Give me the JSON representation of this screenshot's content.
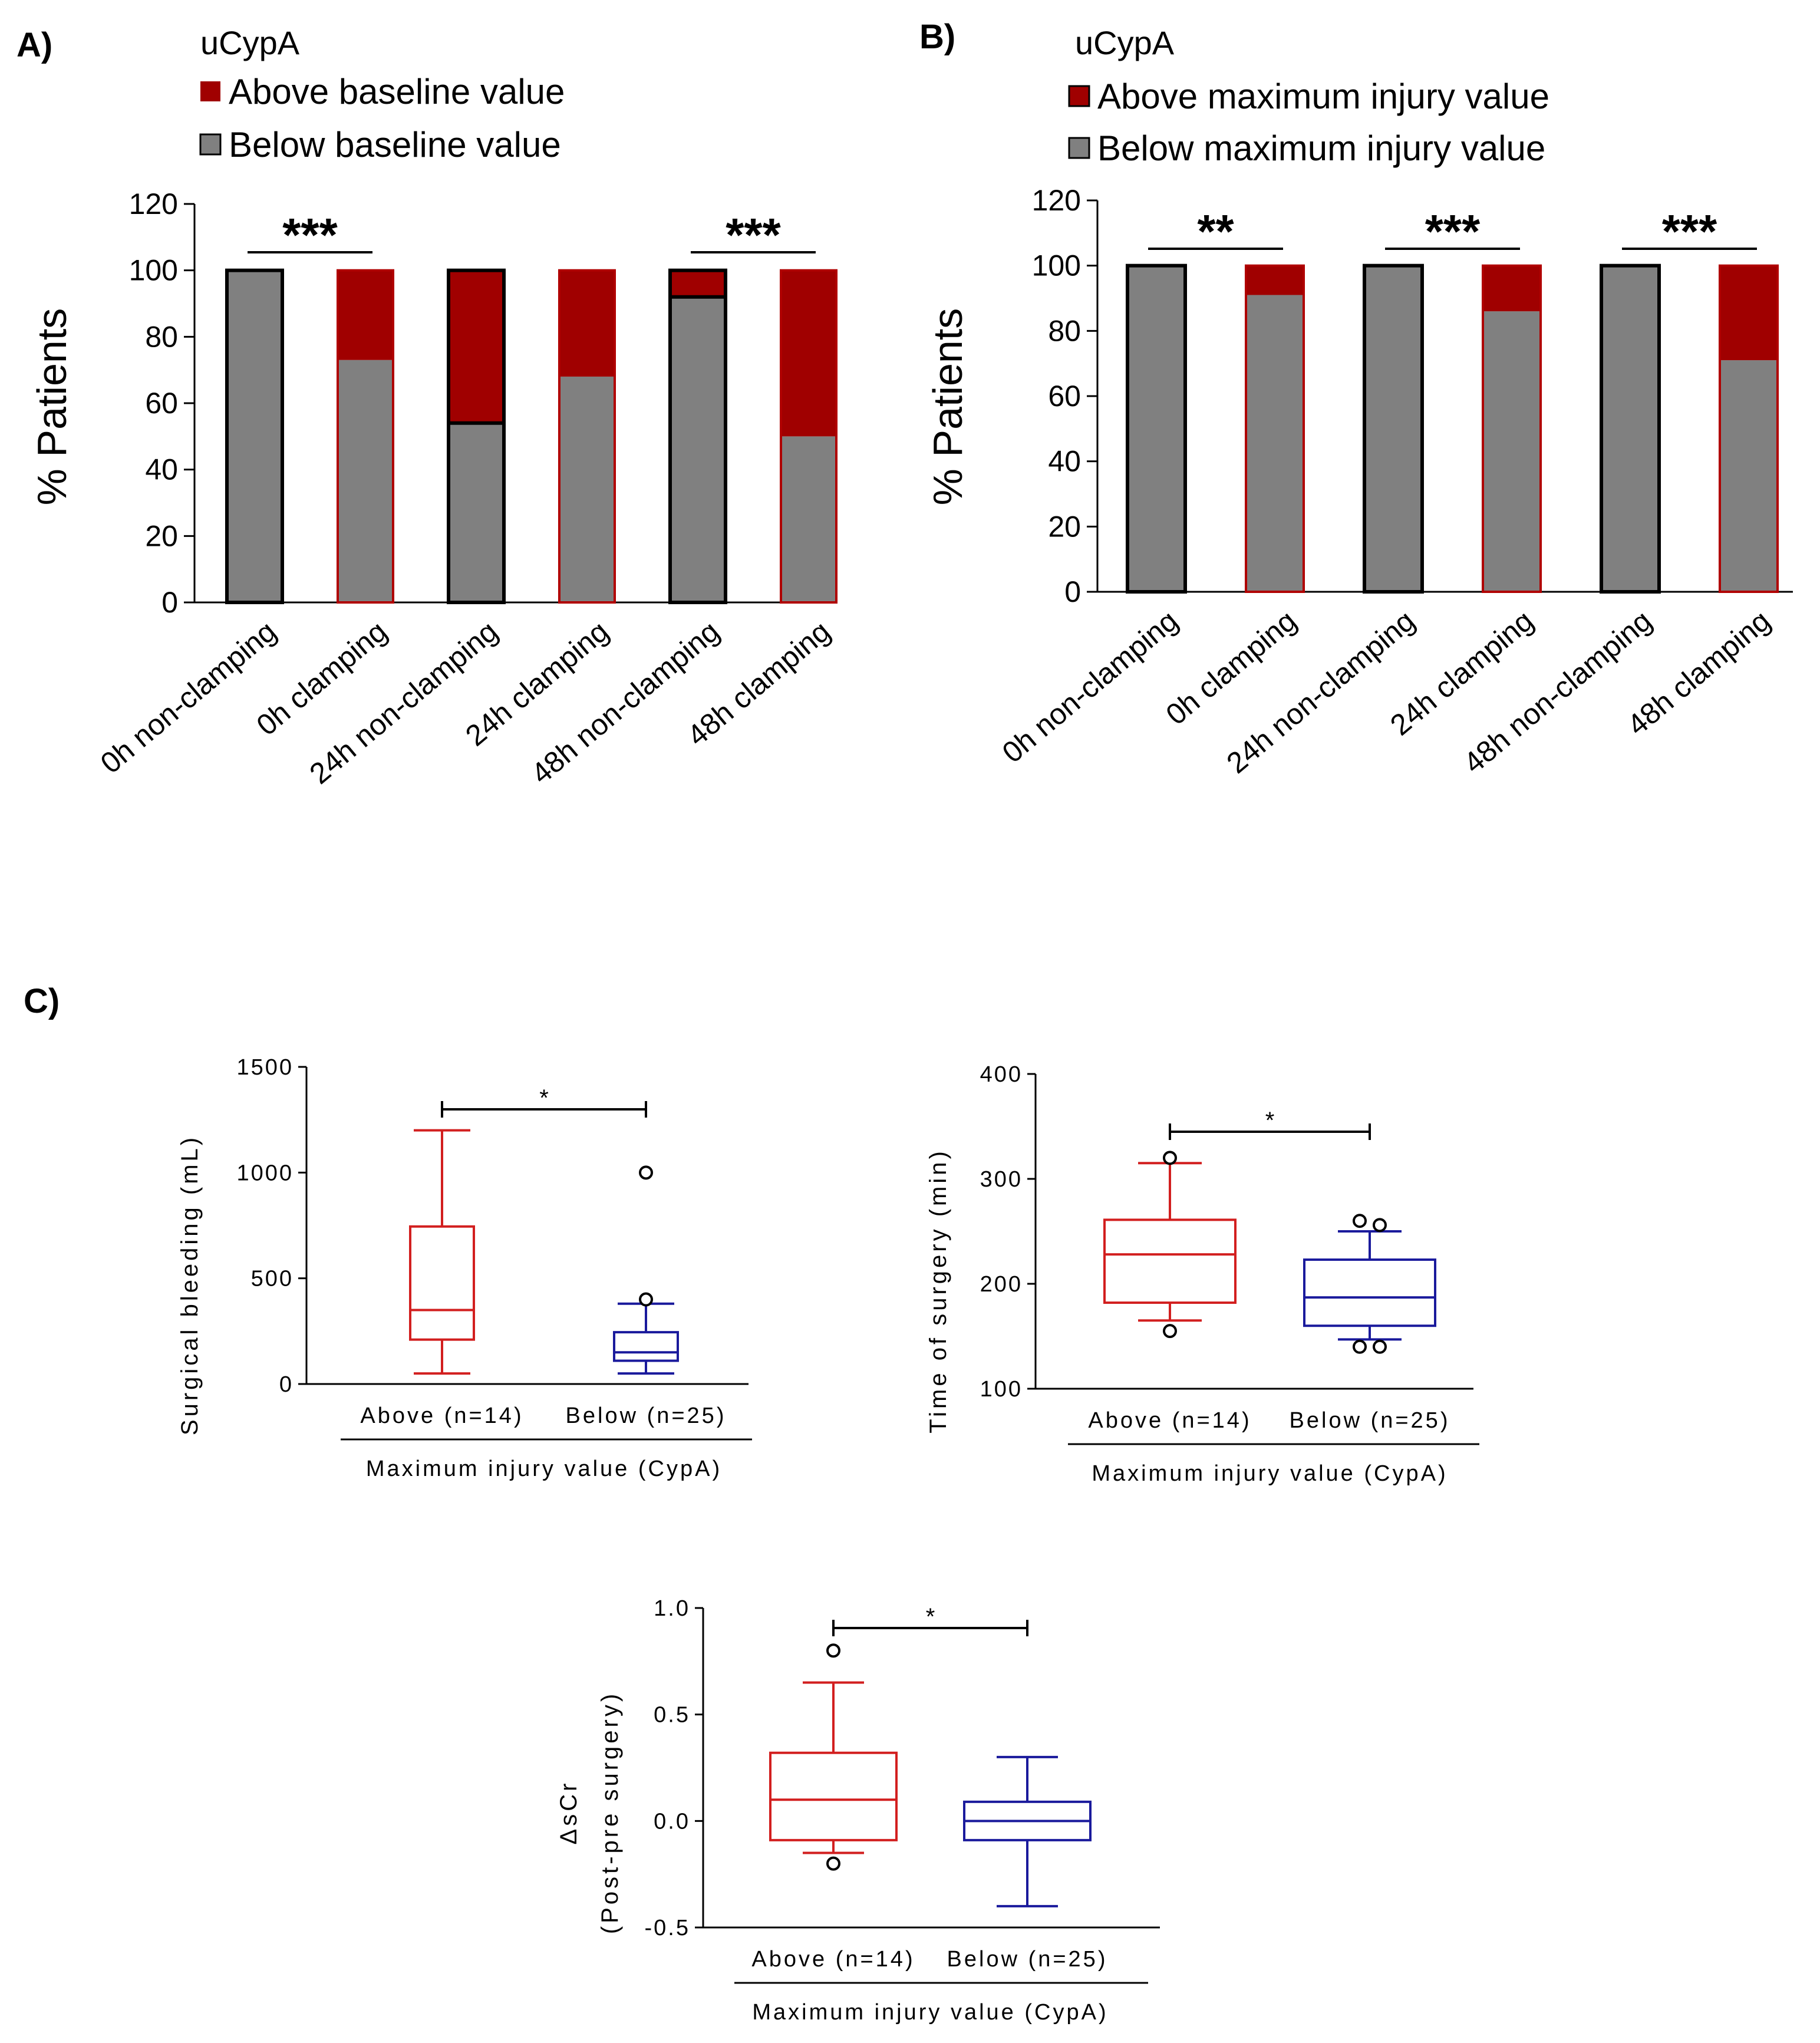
{
  "colors": {
    "above": "#a00000",
    "below": "#808080",
    "box_above": "#d21f1f",
    "box_below": "#1a1a9c",
    "axis": "#000000"
  },
  "panel_a": {
    "label": "A)",
    "legend_title": "uCypA",
    "legend": [
      "Above baseline value",
      "Below baseline value"
    ]
  },
  "panel_b": {
    "label": "B)",
    "legend_title": "uCypA",
    "legend": [
      "Above maximum injury value",
      "Below maximum injury value"
    ]
  },
  "panel_c": {
    "label": "C)"
  },
  "chart_data": [
    {
      "id": "A",
      "type": "bar",
      "stacked": true,
      "title": "uCypA",
      "ylabel": "% Patients",
      "ylim": [
        0,
        120
      ],
      "yticks": [
        0,
        20,
        40,
        60,
        80,
        100,
        120
      ],
      "categories": [
        "0h non-clamping",
        "0h clamping",
        "24h non-clamping",
        "24h clamping",
        "48h non-clamping",
        "48h clamping"
      ],
      "series": [
        {
          "name": "Below baseline value",
          "values": [
            100,
            73,
            54,
            68,
            92,
            50
          ]
        },
        {
          "name": "Above baseline value",
          "values": [
            0,
            27,
            46,
            32,
            8,
            50
          ]
        }
      ],
      "significance": [
        {
          "from": 0,
          "to": 1,
          "label": "***"
        },
        {
          "from": 4,
          "to": 5,
          "label": "***"
        }
      ]
    },
    {
      "id": "B",
      "type": "bar",
      "stacked": true,
      "title": "uCypA",
      "ylabel": "% Patients",
      "ylim": [
        0,
        120
      ],
      "yticks": [
        0,
        20,
        40,
        60,
        80,
        100,
        120
      ],
      "categories": [
        "0h non-clamping",
        "0h clamping",
        "24h non-clamping",
        "24h clamping",
        "48h non-clamping",
        "48h clamping"
      ],
      "series": [
        {
          "name": "Below maximum injury value",
          "values": [
            100,
            91,
            100,
            86,
            100,
            71
          ]
        },
        {
          "name": "Above maximum injury value",
          "values": [
            0,
            9,
            0,
            14,
            0,
            29
          ]
        }
      ],
      "significance": [
        {
          "from": 0,
          "to": 1,
          "label": "**"
        },
        {
          "from": 2,
          "to": 3,
          "label": "***"
        },
        {
          "from": 4,
          "to": 5,
          "label": "***"
        }
      ]
    },
    {
      "id": "C1",
      "type": "box",
      "ylabel": "Surgical bleeding (mL)",
      "xlabel": "Maximum injury value (CypA)",
      "ylim": [
        0,
        1500
      ],
      "yticks": [
        0,
        500,
        1000,
        1500
      ],
      "ytick_labels": [
        "0",
        "500",
        "1000",
        "1500"
      ],
      "groups": [
        {
          "name": "Above (n=14)",
          "whisker_low": 50,
          "q1": 210,
          "median": 350,
          "q3": 745,
          "whisker_high": 1200,
          "outliers": []
        },
        {
          "name": "Below (n=25)",
          "whisker_low": 50,
          "q1": 110,
          "median": 150,
          "q3": 245,
          "whisker_high": 380,
          "outliers": [
            400,
            1000
          ]
        }
      ],
      "significance": "*"
    },
    {
      "id": "C2",
      "type": "box",
      "ylabel": "Time of surgery (min)",
      "xlabel": "Maximum injury value (CypA)",
      "ylim": [
        100,
        400
      ],
      "yticks": [
        100,
        200,
        300,
        400
      ],
      "ytick_labels": [
        "100",
        "200",
        "300",
        "400"
      ],
      "groups": [
        {
          "name": "Above (n=14)",
          "whisker_low": 165,
          "q1": 182,
          "median": 228,
          "q3": 261,
          "whisker_high": 315,
          "outliers": [
            155,
            320
          ]
        },
        {
          "name": "Below (n=25)",
          "whisker_low": 147,
          "q1": 160,
          "median": 187,
          "q3": 223,
          "whisker_high": 250,
          "outliers": [
            140,
            140,
            260,
            256
          ]
        }
      ],
      "significance": "*"
    },
    {
      "id": "C3",
      "type": "box",
      "ylabel": "ΔsCr",
      "ylabel_sub": "(Post-pre surgery)",
      "xlabel": "Maximum injury value (CypA)",
      "ylim": [
        -0.5,
        1.0
      ],
      "yticks": [
        -0.5,
        0,
        0.5,
        1.0
      ],
      "ytick_labels": [
        "-0.5",
        "0.0",
        "0.5",
        "1.0"
      ],
      "groups": [
        {
          "name": "Above (n=14)",
          "whisker_low": -0.15,
          "q1": -0.09,
          "median": 0.1,
          "q3": 0.32,
          "whisker_high": 0.65,
          "outliers": [
            -0.2,
            0.8
          ]
        },
        {
          "name": "Below (n=25)",
          "whisker_low": -0.4,
          "q1": -0.09,
          "median": 0.0,
          "q3": 0.09,
          "whisker_high": 0.3,
          "outliers": []
        }
      ],
      "significance": "*"
    }
  ]
}
